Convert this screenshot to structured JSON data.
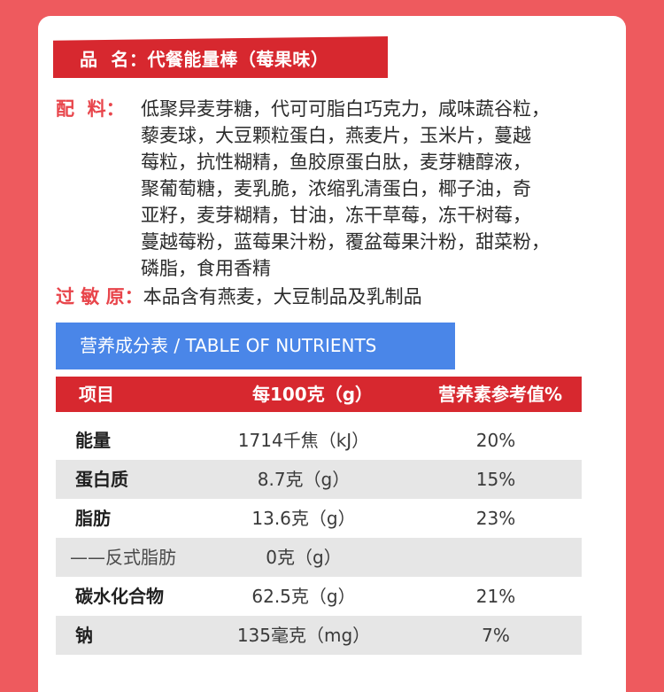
{
  "product_name": {
    "label": "品  名：",
    "value": "代餐能量棒（莓果味）"
  },
  "ingredients": {
    "label": "配  料：",
    "lines": [
      "低聚异麦芽糖，代可可脂白巧克力，咸味蔬谷粒，",
      "藜麦球，大豆颗粒蛋白，燕麦片，玉米片，蔓越",
      "莓粒，抗性糊精，鱼胶原蛋白肽，麦芽糖醇液，",
      "聚葡萄糖，麦乳脆，浓缩乳清蛋白，椰子油，奇",
      "亚籽，麦芽糊精，甘油，冻干草莓，冻干树莓，",
      "蔓越莓粉，蓝莓果汁粉，覆盆莓果汁粉，甜菜粉，",
      "磷脂，食用香精"
    ]
  },
  "allergen": {
    "label": "过 敏 原：",
    "value": "本品含有燕麦，大豆制品及乳制品"
  },
  "nutrition": {
    "title": "营养成分表 / TABLE OF NUTRIENTS",
    "headers": [
      "项目",
      "每100克（g）",
      "营养素参考值%"
    ],
    "rows": [
      [
        "能量",
        "1714千焦（kJ）",
        "20%"
      ],
      [
        "蛋白质",
        "8.7克（g）",
        "15%"
      ],
      [
        "脂肪",
        "13.6克（g）",
        "23%"
      ],
      [
        "——反式脂肪",
        "0克（g）",
        ""
      ],
      [
        "碳水化合物",
        "62.5克（g）",
        "21%"
      ],
      [
        "钠",
        "135毫克（mg）",
        "7%"
      ]
    ]
  },
  "colors": {
    "background": "#ee5a5e",
    "banner_red": "#d7282f",
    "label_red": "#e8454b",
    "table_title_blue": "#4a86e8",
    "row_shade": "#e6e6e6"
  }
}
